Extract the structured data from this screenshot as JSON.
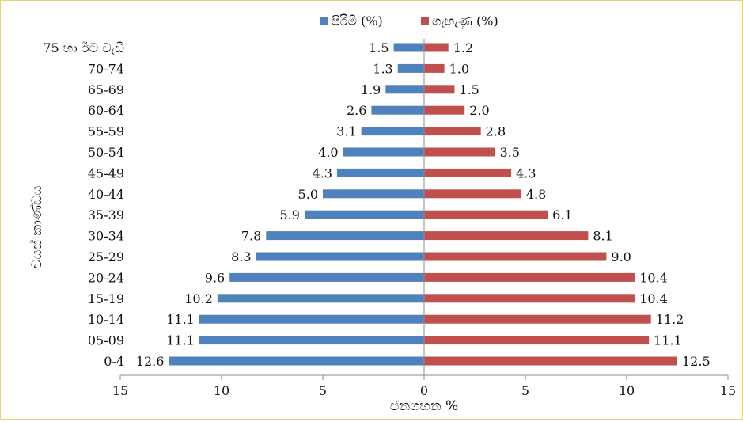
{
  "chart_data": {
    "type": "bar",
    "orientation": "horizontal",
    "layout": "population-pyramid",
    "categories": [
      "0-4",
      "05-09",
      "10-14",
      "15-19",
      "20-24",
      "25-29",
      "30-34",
      "35-39",
      "40-44",
      "45-49",
      "50-54",
      "55-59",
      "60-64",
      "65-69",
      "70-74",
      "75 හා ඊට වැඩි"
    ],
    "series": [
      {
        "name": "පිරිමි (%)",
        "color": "#4f81bd",
        "side": "left",
        "values": [
          12.6,
          11.1,
          11.1,
          10.2,
          9.6,
          8.3,
          7.8,
          5.9,
          5.0,
          4.3,
          4.0,
          3.1,
          2.6,
          1.9,
          1.3,
          1.5
        ]
      },
      {
        "name": "ගැහැණු (%)",
        "color": "#c0504d",
        "side": "right",
        "values": [
          12.5,
          11.1,
          11.2,
          10.4,
          10.4,
          9.0,
          8.1,
          6.1,
          4.8,
          4.3,
          3.5,
          2.8,
          2.0,
          1.5,
          1.0,
          1.2
        ]
      }
    ],
    "xlabel": "ජනගහන %",
    "ylabel": "වයස් කාණ්ඩය",
    "xlim": [
      -15,
      15
    ],
    "x_ticks": [
      -15,
      -10,
      -5,
      0,
      5,
      10,
      15
    ],
    "x_tick_labels": [
      "15",
      "10",
      "5",
      "0",
      "5",
      "10",
      "15"
    ],
    "legend_position": "top-center",
    "grid": false
  }
}
